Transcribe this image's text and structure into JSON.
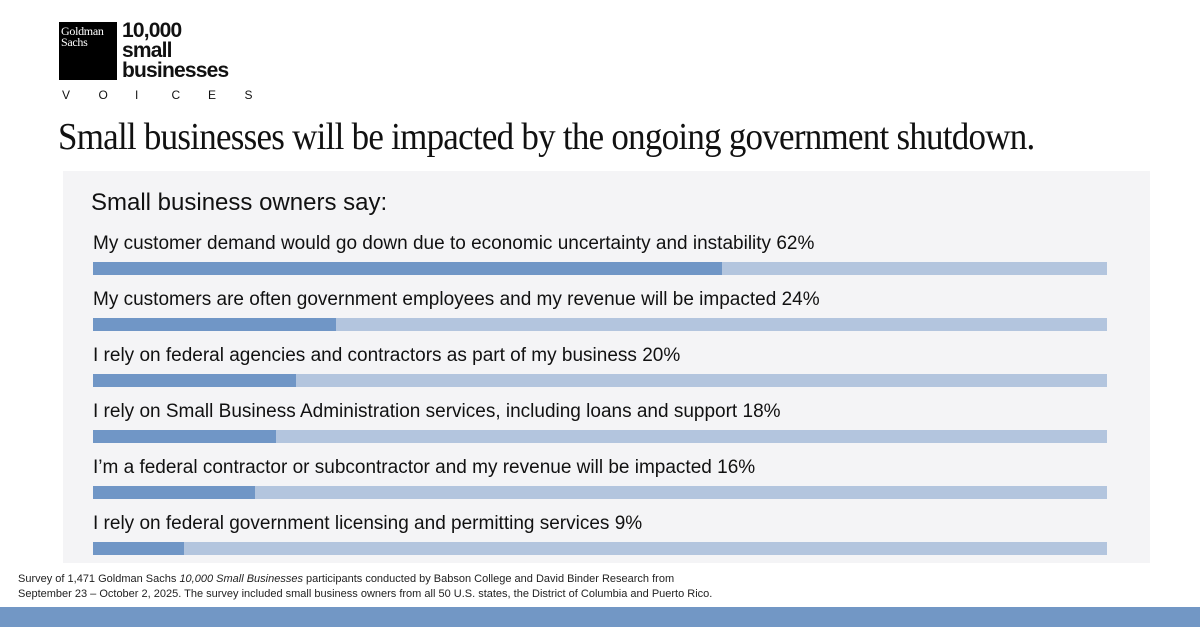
{
  "logo": {
    "brand": "Goldman Sachs",
    "program": "10,000 small businesses",
    "sub": "VOICES"
  },
  "title": "Small businesses will be impacted by the ongoing government shutdown.",
  "colors": {
    "fill": "#7096c6",
    "track": "#b3c5de",
    "panel": "#f4f4f6",
    "band": "#7297c5"
  },
  "chart_data": {
    "type": "bar",
    "orientation": "horizontal",
    "subtitle": "Small business owners say:",
    "categories": [
      "My customer demand would go down due to economic uncertainty and instability",
      "My customers are often government employees and my revenue will be impacted",
      "I rely on federal agencies and contractors as part of my business",
      "I rely on Small Business Administration services, including loans and support",
      "I’m a federal contractor or subcontractor and my revenue will be impacted",
      "I rely on federal government licensing and permitting services"
    ],
    "values": [
      62,
      24,
      20,
      18,
      16,
      9
    ],
    "value_labels": [
      "62%",
      "24%",
      "20%",
      "18%",
      "16%",
      "9%"
    ],
    "xlim": [
      0,
      100
    ]
  },
  "footnote": {
    "pre": "Survey of 1,471 Goldman Sachs ",
    "italic": "10,000 Small Businesses",
    "post": " participants conducted by Babson College and David Binder Research from",
    "line2": "September 23 – October 2, 2025. The survey included small business owners from all 50 U.S. states, the District of Columbia and Puerto Rico."
  }
}
